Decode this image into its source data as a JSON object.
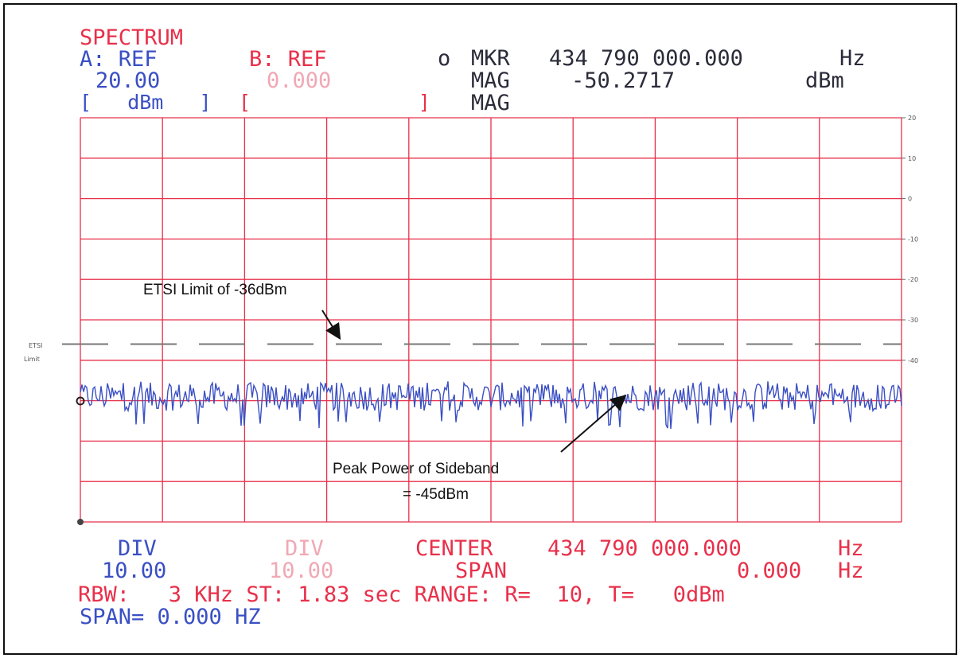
{
  "header": {
    "title": "SPECTRUM",
    "a_ref_label": "A: REF",
    "b_ref_label": "B: REF",
    "a_ref_value": "20.00",
    "b_ref_value": "0.000",
    "a_unit_bracket": "[   dBm   ]",
    "b_unit_bracket": "[              ]",
    "marker_symbol": "o",
    "mkr_label": "MKR",
    "mkr_freq": "434 790 000.000",
    "mkr_freq_unit": "Hz",
    "mag_label_1": "MAG",
    "mag_value": "-50.2717",
    "mag_unit": "dBm",
    "mag_label_2": "MAG"
  },
  "annotations": {
    "etsi_limit": "ETSI Limit of -36dBm",
    "peak_line1": "Peak Power of Sideband",
    "peak_line2": "= -45dBm",
    "etsi_side_1": "ETSI",
    "etsi_side_2": "Limit"
  },
  "footer": {
    "a_div_label": "DIV",
    "a_div_value": "10.00",
    "b_div_label": "DIV",
    "b_div_value": "10.00",
    "center_label": "CENTER",
    "center_freq": "434 790 000.000",
    "center_unit": "Hz",
    "span_label": "SPAN",
    "span_value": "0.000",
    "span_unit": "Hz",
    "rbw_line": "RBW:   3 KHz ST: 1.83 sec RANGE: R=  10, T=   0dBm",
    "span_line": "SPAN= 0.000 HZ"
  },
  "chart_data": {
    "type": "line",
    "x_divisions": 10,
    "y_divisions": 10,
    "ylim": [
      -80,
      20
    ],
    "yticks": [
      "20",
      "10",
      "0",
      "-10",
      "-20",
      "-30",
      "-40"
    ],
    "grid": true,
    "limit_line": {
      "value": -36,
      "unit": "dBm",
      "style": "dashed"
    },
    "noise_trace": {
      "mean": -49,
      "peak": -45,
      "floor": -57
    },
    "colors": {
      "grid": "#e8304a",
      "trace": "#3a4fc4",
      "limit": "#777777"
    }
  }
}
